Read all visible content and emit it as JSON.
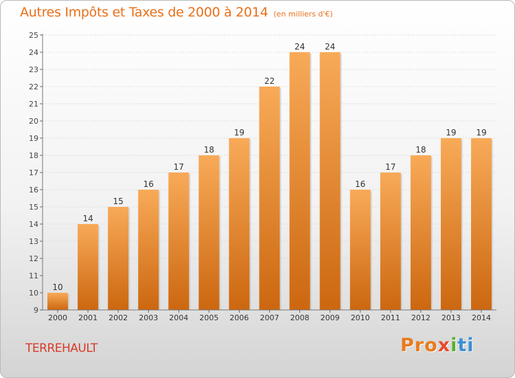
{
  "chart_data": {
    "type": "bar",
    "title": "Autres Impôts et Taxes de 2000 à 2014",
    "subtitle": "(en milliers d'€)",
    "categories": [
      "2000",
      "2001",
      "2002",
      "2003",
      "2004",
      "2005",
      "2006",
      "2007",
      "2008",
      "2009",
      "2010",
      "2011",
      "2012",
      "2013",
      "2014"
    ],
    "values": [
      10,
      14,
      15,
      16,
      17,
      18,
      19,
      22,
      24,
      24,
      16,
      17,
      18,
      19,
      19
    ],
    "ylim": [
      9,
      25
    ],
    "yticks": [
      9,
      10,
      11,
      12,
      13,
      14,
      15,
      16,
      17,
      18,
      19,
      20,
      21,
      22,
      23,
      24,
      25
    ],
    "grid": "horizontal",
    "colors": {
      "bar_light": "#f7a653",
      "bar_dark": "#cf6a10",
      "text": "#e8701a"
    }
  },
  "footer": {
    "commune": "TERREHAULT",
    "brand": [
      "Pro",
      "x",
      "i",
      "ti"
    ]
  }
}
